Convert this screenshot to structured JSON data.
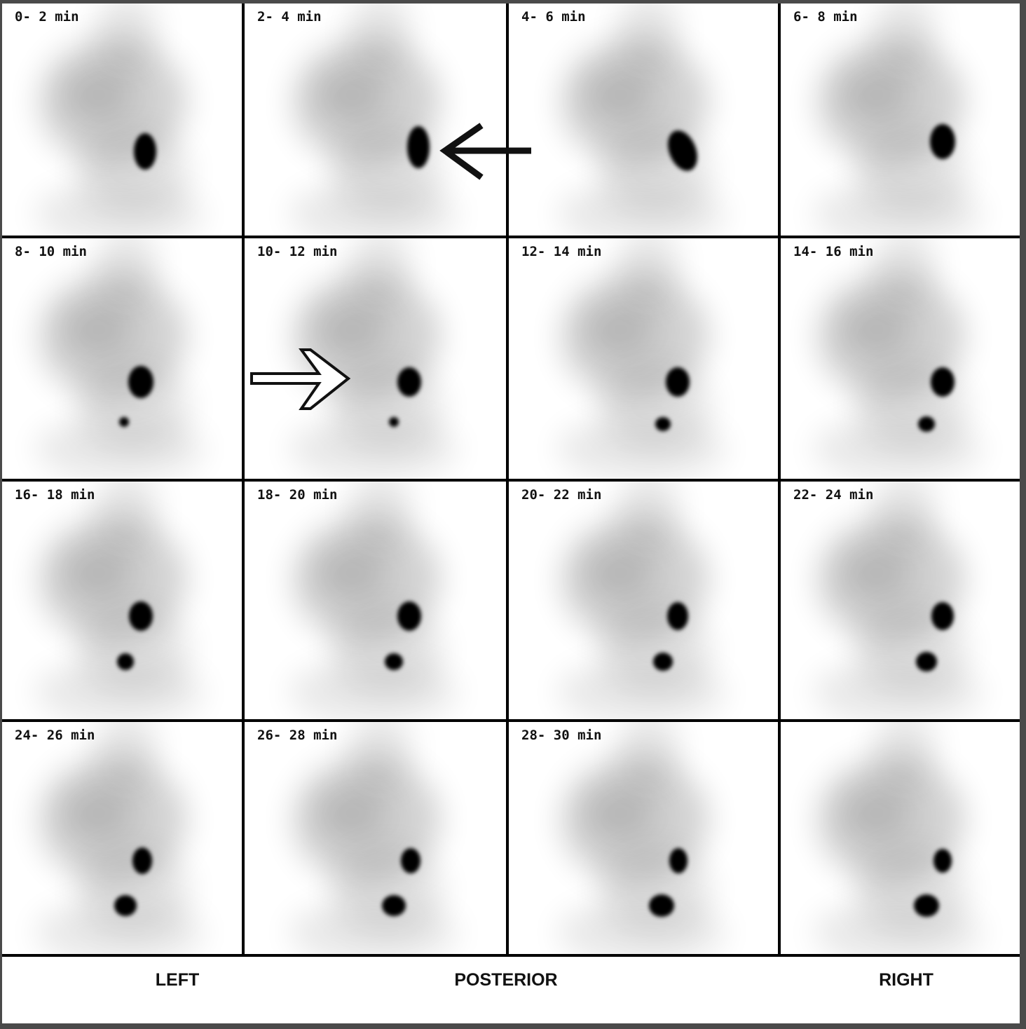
{
  "frames": [
    {
      "label": "0- 2 min"
    },
    {
      "label": "2- 4 min"
    },
    {
      "label": "4- 6 min"
    },
    {
      "label": "6- 8 min"
    },
    {
      "label": "8- 10 min"
    },
    {
      "label": "10- 12 min"
    },
    {
      "label": "12- 14 min"
    },
    {
      "label": "14- 16 min"
    },
    {
      "label": "16- 18 min"
    },
    {
      "label": "18- 20 min"
    },
    {
      "label": "20- 22 min"
    },
    {
      "label": "22- 24 min"
    },
    {
      "label": "24- 26 min"
    },
    {
      "label": "26- 28 min"
    },
    {
      "label": "28- 30 min"
    },
    {
      "label": ""
    }
  ],
  "orientation": {
    "left": "LEFT",
    "center": "POSTERIOR",
    "right": "RIGHT"
  },
  "colors": {
    "background": "#ffffff",
    "frame_border": "#000000",
    "uptake": "#000000",
    "outer_bezel": "#4a4a4a"
  },
  "icons": {
    "solid_arrow": "arrow-left-icon",
    "hollow_arrow": "arrow-right-outline-icon"
  }
}
